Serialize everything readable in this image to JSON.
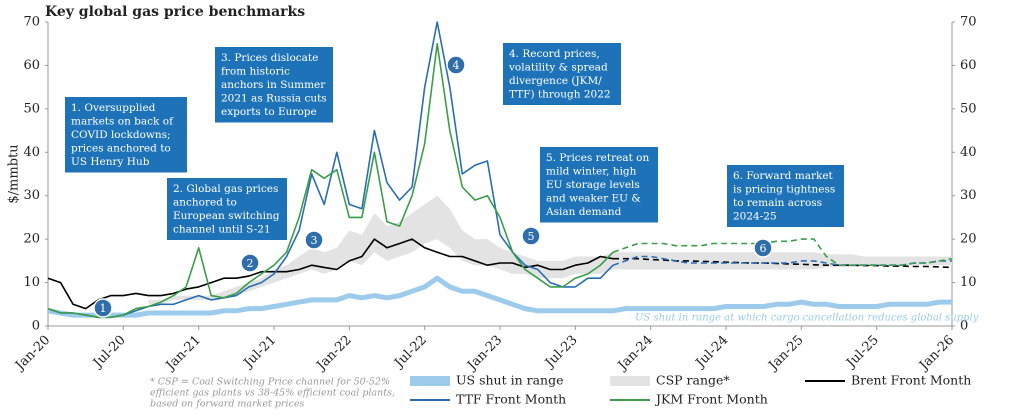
{
  "chart_data": {
    "type": "line",
    "title": "Key global gas price benchmarks",
    "y_label": "$/mmbtu",
    "categories": [
      "Jan-20",
      null,
      null,
      null,
      null,
      null,
      "Jul-20",
      null,
      null,
      null,
      null,
      null,
      "Jan-21",
      null,
      null,
      null,
      null,
      null,
      "Jul-21",
      null,
      null,
      null,
      null,
      null,
      "Jan-22",
      null,
      null,
      null,
      null,
      null,
      "Jul-22",
      null,
      null,
      null,
      null,
      null,
      "Jan-23",
      null,
      null,
      null,
      null,
      null,
      "Jul-23",
      null,
      null,
      null,
      null,
      null,
      "Jan-24",
      null,
      null,
      null,
      null,
      null,
      "Jul-24",
      null,
      null,
      null,
      null,
      null,
      "Jan-25",
      null,
      null,
      null,
      null,
      null,
      "Jul-25",
      null,
      null,
      null,
      null,
      null,
      "Jan-26"
    ],
    "ylim": [
      0,
      70
    ],
    "yticks": [
      0,
      10,
      20,
      30,
      40,
      50,
      60,
      70
    ],
    "y2lim": [
      0,
      70
    ],
    "y2ticks": [
      0,
      10,
      20,
      30,
      40,
      50,
      60,
      70
    ],
    "series": [
      {
        "name": "US shut in range",
        "color": "#9dcbec",
        "values": [
          3.5,
          3,
          2.5,
          2.5,
          2.5,
          2.5,
          2.5,
          2.5,
          3,
          3,
          3,
          3,
          3,
          3,
          3.5,
          3.5,
          4,
          4,
          4.5,
          5,
          5.5,
          6,
          6,
          6,
          7,
          6.5,
          7,
          6.5,
          7,
          8,
          9,
          11,
          9,
          8,
          8,
          7,
          6,
          5,
          4,
          3.5,
          3.5,
          3.5,
          3.5,
          3.5,
          3.5,
          3.5,
          4,
          4,
          4,
          4,
          4,
          4,
          4,
          4,
          4.5,
          4.5,
          4.5,
          4.5,
          5,
          5,
          5.5,
          5,
          5,
          4.5,
          4.5,
          4.5,
          4.5,
          5,
          5,
          5,
          5,
          5.5,
          5.5
        ]
      },
      {
        "name": "CSP range*",
        "color": "#e3e3e3",
        "low": [
          null,
          null,
          null,
          null,
          null,
          null,
          null,
          null,
          5,
          5,
          6,
          6,
          6,
          6,
          6.5,
          7,
          8,
          9,
          10,
          11,
          12,
          13,
          12,
          13,
          15,
          14,
          17,
          15,
          16,
          17,
          19,
          20,
          18,
          15,
          14,
          14,
          13,
          12,
          12,
          11,
          11,
          11,
          12,
          12,
          12,
          13,
          13,
          13,
          13,
          13,
          13,
          13,
          13,
          13,
          13,
          13,
          13,
          13,
          13,
          13,
          13,
          13,
          13.5,
          13.5,
          13.5,
          14,
          14,
          14,
          14,
          14,
          14,
          14,
          14
        ],
        "high": [
          null,
          null,
          null,
          null,
          null,
          null,
          null,
          null,
          6,
          6,
          7,
          7,
          7,
          7,
          8,
          9,
          10,
          11,
          13,
          14,
          16,
          18,
          17,
          18,
          22,
          21,
          26,
          23,
          24,
          26,
          28,
          30,
          27,
          22,
          20,
          20,
          18,
          17,
          16,
          15,
          15,
          15,
          16,
          16,
          16,
          17,
          17,
          17,
          17,
          17,
          17,
          17,
          17,
          17,
          17,
          17,
          17,
          17,
          17,
          17,
          17,
          17,
          16.5,
          16.5,
          16.5,
          16,
          16,
          16,
          16,
          16,
          16,
          16,
          16
        ]
      },
      {
        "name": "Brent Front Month",
        "color": "#000000",
        "values": [
          11,
          10,
          5,
          4,
          6,
          7,
          7,
          7.5,
          7,
          7,
          7.5,
          8.5,
          9,
          10,
          11,
          11,
          11.5,
          12.5,
          12.5,
          12.5,
          13,
          14,
          13.5,
          13,
          15,
          16,
          20,
          18,
          19,
          20,
          18,
          17,
          16,
          16,
          15,
          14,
          14.5,
          14.5,
          13.5,
          14,
          13,
          13,
          14,
          14.5,
          16,
          15.5,
          null,
          null,
          null,
          null,
          null,
          null,
          null,
          null,
          null,
          null,
          null,
          null,
          null,
          null,
          null,
          null,
          null,
          null,
          null,
          null,
          null,
          null,
          null,
          null,
          null,
          null,
          null
        ],
        "forward_values": [
          null,
          null,
          null,
          null,
          null,
          null,
          null,
          null,
          null,
          null,
          null,
          null,
          null,
          null,
          null,
          null,
          null,
          null,
          null,
          null,
          null,
          null,
          null,
          null,
          null,
          null,
          null,
          null,
          null,
          null,
          null,
          null,
          null,
          null,
          null,
          null,
          null,
          null,
          null,
          null,
          null,
          null,
          null,
          null,
          null,
          15.5,
          15.5,
          15.5,
          15.3,
          15.2,
          15,
          15,
          14.9,
          14.8,
          14.7,
          14.6,
          14.5,
          14.5,
          14.4,
          14.3,
          14.2,
          14.1,
          14,
          14,
          14,
          13.9,
          13.9,
          13.8,
          13.8,
          13.7,
          13.7,
          13.6,
          13.5
        ]
      },
      {
        "name": "TTF Front Month",
        "color": "#2a6db5",
        "values": [
          4,
          3,
          3,
          2.5,
          2,
          2,
          2.5,
          3.5,
          4.5,
          5,
          5,
          6,
          7,
          6,
          6.5,
          7,
          9,
          10,
          12,
          16,
          22,
          35,
          28,
          40,
          28,
          27,
          45,
          33,
          29,
          32,
          55,
          70,
          55,
          35,
          37,
          38,
          21,
          17,
          14,
          13,
          10,
          9,
          9,
          11,
          11,
          14,
          null,
          null,
          null,
          null,
          null,
          null,
          null,
          null,
          null,
          null,
          null,
          null,
          null,
          null,
          null,
          null,
          null,
          null,
          null,
          null,
          null,
          null,
          null,
          null,
          null,
          null,
          null
        ],
        "forward_values": [
          null,
          null,
          null,
          null,
          null,
          null,
          null,
          null,
          null,
          null,
          null,
          null,
          null,
          null,
          null,
          null,
          null,
          null,
          null,
          null,
          null,
          null,
          null,
          null,
          null,
          null,
          null,
          null,
          null,
          null,
          null,
          null,
          null,
          null,
          null,
          null,
          null,
          null,
          null,
          null,
          null,
          null,
          null,
          null,
          null,
          14,
          15,
          16,
          16,
          15.5,
          15,
          14.5,
          14.5,
          14.5,
          14.5,
          14.5,
          14.5,
          14.5,
          14.5,
          14.5,
          15,
          15,
          14.5,
          14,
          14,
          14,
          14,
          14,
          14,
          14.5,
          14.5,
          15,
          15
        ]
      },
      {
        "name": "JKM Front Month",
        "color": "#3a9e4a",
        "values": [
          4,
          3,
          3,
          2.5,
          2,
          2,
          2.5,
          4,
          4.5,
          5.5,
          7,
          9,
          18,
          7,
          6.5,
          7.5,
          10,
          12,
          14,
          17,
          25,
          36,
          34,
          36,
          25,
          25,
          40,
          24,
          23,
          30,
          42,
          65,
          45,
          32,
          29,
          30,
          25,
          17,
          13,
          11,
          9,
          9,
          11,
          12,
          14,
          17,
          null,
          null,
          null,
          null,
          null,
          null,
          null,
          null,
          null,
          null,
          null,
          null,
          null,
          null,
          null,
          null,
          null,
          null,
          null,
          null,
          null,
          null,
          null,
          null,
          null,
          null,
          null
        ],
        "forward_values": [
          null,
          null,
          null,
          null,
          null,
          null,
          null,
          null,
          null,
          null,
          null,
          null,
          null,
          null,
          null,
          null,
          null,
          null,
          null,
          null,
          null,
          null,
          null,
          null,
          null,
          null,
          null,
          null,
          null,
          null,
          null,
          null,
          null,
          null,
          null,
          null,
          null,
          null,
          null,
          null,
          null,
          null,
          null,
          null,
          null,
          17,
          18,
          19,
          19,
          19,
          18.5,
          18.5,
          18.5,
          19,
          19,
          19,
          19,
          19,
          19.5,
          19.5,
          20,
          20,
          16,
          14,
          14,
          14,
          14,
          14,
          14,
          14.5,
          14.5,
          15,
          15.5
        ]
      }
    ],
    "annotations": [
      {
        "marker": "1",
        "lines": [
          "1. Oversupplied",
          "markets on back of",
          "COVID lockdowns;",
          "prices anchored to",
          "US Henry Hub"
        ]
      },
      {
        "marker": "2",
        "lines": [
          "2. Global gas prices",
          "anchored to",
          "European switching",
          "channel until S-21"
        ]
      },
      {
        "marker": "3",
        "lines": [
          "3. Prices dislocate",
          "from historic",
          "anchors in Summer",
          "2021 as Russia cuts",
          "exports to Europe"
        ]
      },
      {
        "marker": "4",
        "lines": [
          "4. Record prices,",
          "volatility & spread",
          "divergence (JKM/",
          "TTF) through 2022"
        ]
      },
      {
        "marker": "5",
        "lines": [
          "5. Prices retreat on",
          "mild winter, high",
          "EU storage levels",
          "and weaker EU &",
          "Asian demand"
        ]
      },
      {
        "marker": "6",
        "lines": [
          "6. Forward market",
          "is pricing tightness",
          "to remain across",
          "2024-25"
        ]
      }
    ],
    "shut_in_note": "US shut in range at which cargo cancellation reduces global supply",
    "footnote": [
      "* CSP = Coal Switching Price channel for 50-52%",
      "efficient gas plants vs 38-45% efficient coal plants,",
      "based on forward market prices"
    ]
  }
}
